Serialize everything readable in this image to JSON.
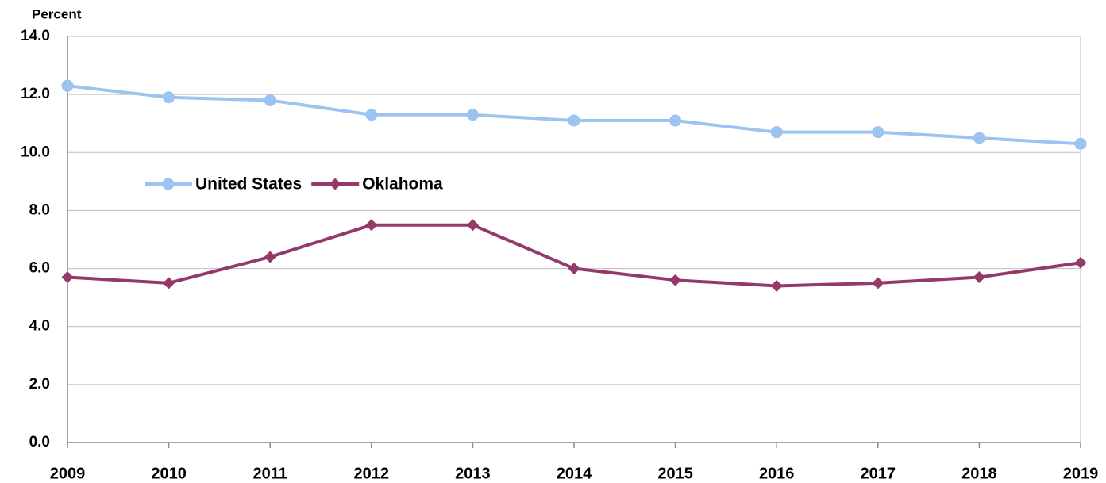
{
  "chart_data": {
    "type": "line",
    "y_label": "Percent",
    "categories": [
      "2009",
      "2010",
      "2011",
      "2012",
      "2013",
      "2014",
      "2015",
      "2016",
      "2017",
      "2018",
      "2019"
    ],
    "series": [
      {
        "name": "United States",
        "color": "#9dc3f0",
        "marker": "circle",
        "values": [
          12.3,
          11.9,
          11.8,
          11.3,
          11.3,
          11.1,
          11.1,
          10.7,
          10.7,
          10.5,
          10.3
        ]
      },
      {
        "name": "Oklahoma",
        "color": "#943a6a",
        "marker": "diamond",
        "values": [
          5.7,
          5.5,
          6.4,
          7.5,
          7.5,
          6.0,
          5.6,
          5.4,
          5.5,
          5.7,
          6.2
        ]
      }
    ],
    "ylim": [
      0,
      14
    ],
    "yticks": [
      {
        "value": 0,
        "label": "0.0"
      },
      {
        "value": 2,
        "label": "2.0"
      },
      {
        "value": 4,
        "label": "4.0"
      },
      {
        "value": 6,
        "label": "6.0"
      },
      {
        "value": 8,
        "label": "8.0"
      },
      {
        "value": 10,
        "label": "10.0"
      },
      {
        "value": 12,
        "label": "12.0"
      },
      {
        "value": 14,
        "label": "14.0"
      }
    ],
    "grid": true
  }
}
